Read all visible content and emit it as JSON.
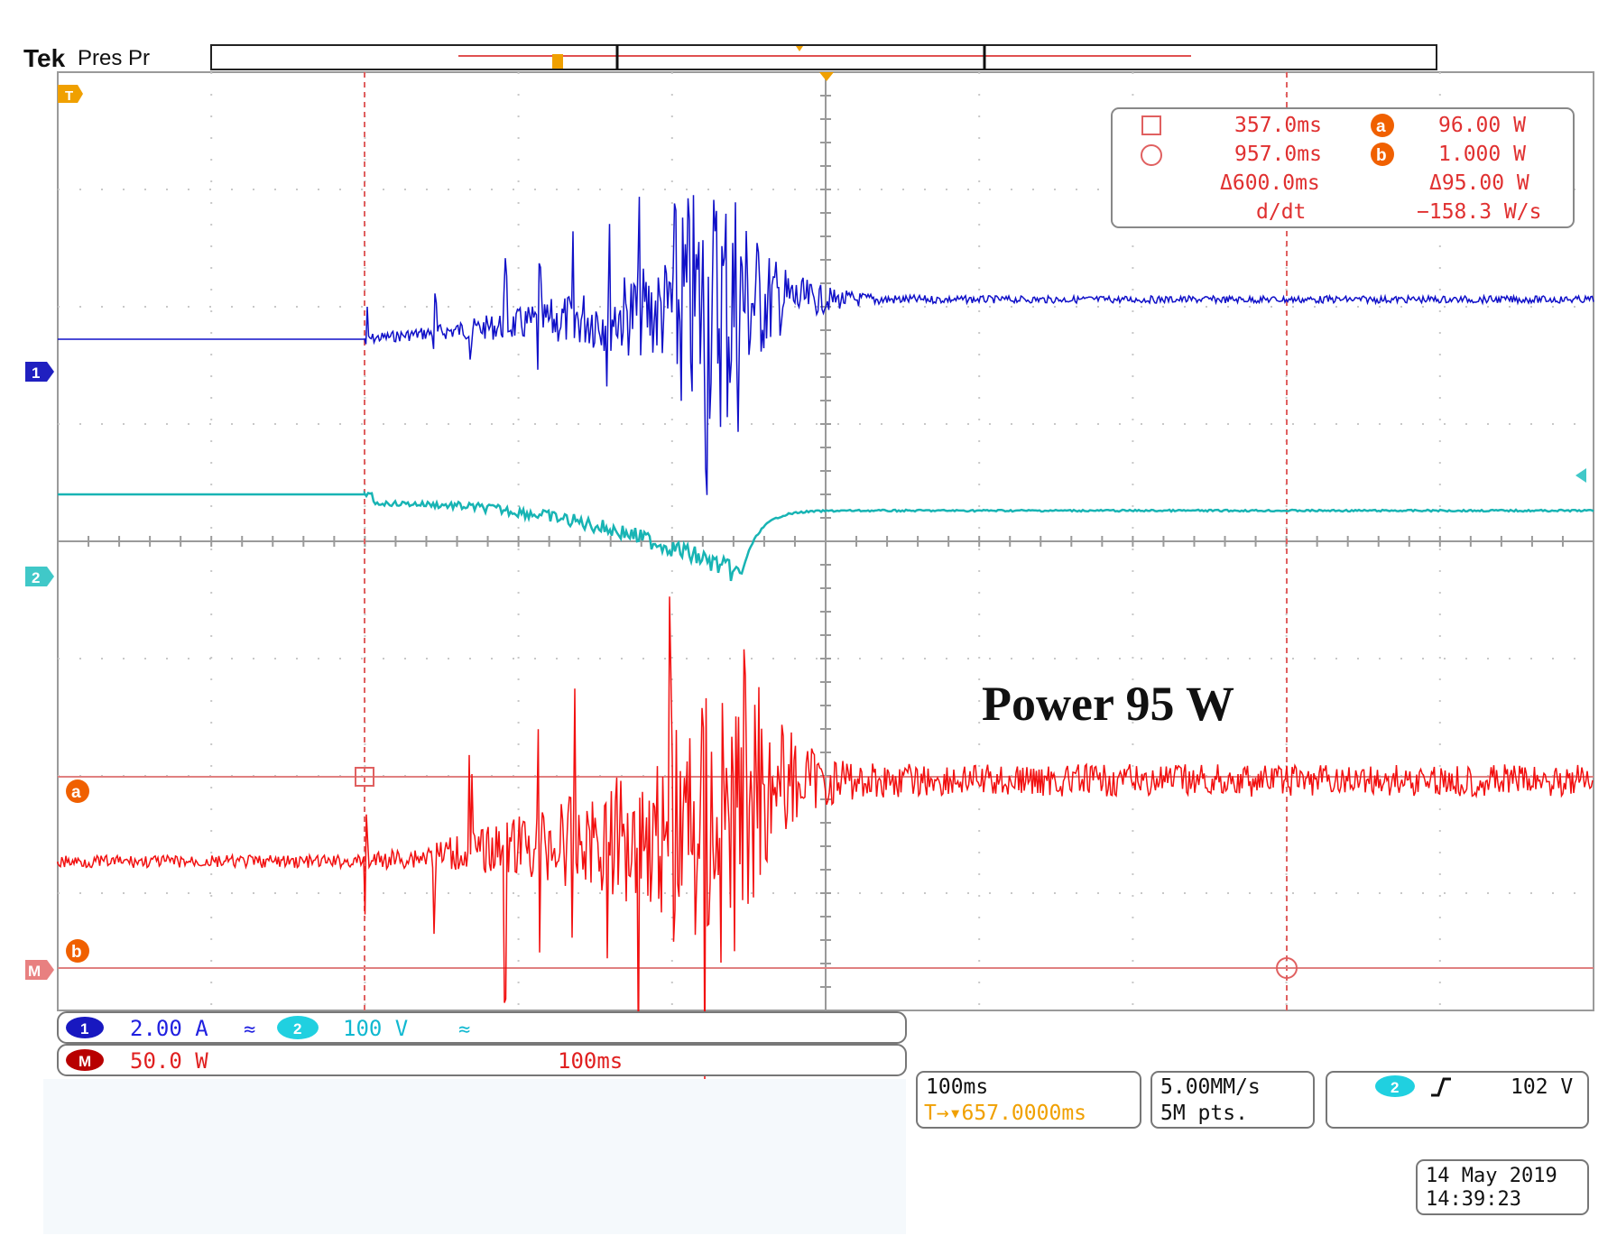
{
  "header": {
    "brand": "Tek",
    "mode": "Pres Pr"
  },
  "markers": {
    "trigger_level": "T",
    "ch1": "1",
    "ch2": "2",
    "math": "M",
    "cursor_a": "a",
    "cursor_b": "b"
  },
  "cursor_readout": {
    "cursor1_time": "357.0ms",
    "cursor2_time": "957.0ms",
    "delta_time": "Δ600.0ms",
    "ddt_label": "d/dt",
    "a_value": "96.00 W",
    "b_value": "1.000 W",
    "delta_value": "Δ95.00 W",
    "ddt_value": "−158.3 W/s"
  },
  "annotation": "Power 95 W",
  "channels": {
    "ch1_badge": "1",
    "ch1_scale": "2.00 A",
    "ch2_badge": "2",
    "ch2_scale": "100 V",
    "coupling_icon": "≈",
    "math_badge": "M",
    "math_scale": "50.0 W",
    "math_timebase": "100ms"
  },
  "horizontal": {
    "timebase": "100ms",
    "trigger_position": "T→▾657.0000ms"
  },
  "acquisition": {
    "sample_rate": "5.00MM/s",
    "record_length": "5M pts."
  },
  "trigger": {
    "source": "2",
    "slope_icon": "rising-edge",
    "level": "102 V"
  },
  "timestamp": {
    "date": "14 May 2019",
    "time": "14:39:23"
  },
  "colors": {
    "ch1": "#1010c8",
    "ch2": "#18b4b4",
    "math": "#f21010",
    "cursor": "#e06060",
    "trigger": "#f0a000",
    "grid": "#b8b8b8"
  }
}
